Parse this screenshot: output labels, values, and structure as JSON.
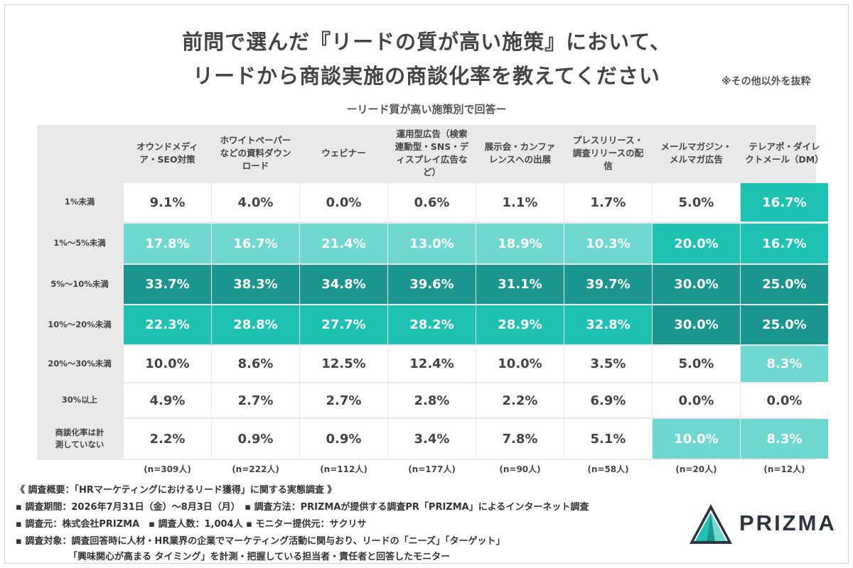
{
  "title_line1": "前問で選んだ『リードの質が高い施策』において、",
  "title_line2": "リードから商談実施の商談化率を教えてください",
  "note": "※その他以外を抜粋",
  "subtitle": "ーリード質が高い施策別で回答ー",
  "chart_data": {
    "type": "table",
    "columns": [
      "オウンドメディア・SEO対策",
      "ホワイトペーパーなどの資料ダウンロード",
      "ウェビナー",
      "運用型広告（検索連動型・SNS・ディスプレイ広告など）",
      "展示会・カンファレンスへの出展",
      "プレスリリース・調査リリースの配信",
      "メールマガジン・メルマガ広告",
      "テレアポ・ダイレクトメール（DM）"
    ],
    "rows": [
      {
        "label": "1%未満",
        "values": [
          "9.1%",
          "4.0%",
          "0.0%",
          "0.6%",
          "1.1%",
          "1.7%",
          "5.0%",
          "16.7%"
        ]
      },
      {
        "label": "1%〜5%未満",
        "values": [
          "17.8%",
          "16.7%",
          "21.4%",
          "13.0%",
          "18.9%",
          "10.3%",
          "20.0%",
          "16.7%"
        ]
      },
      {
        "label": "5%〜10%未満",
        "values": [
          "33.7%",
          "38.3%",
          "34.8%",
          "39.6%",
          "31.1%",
          "39.7%",
          "30.0%",
          "25.0%"
        ]
      },
      {
        "label": "10%〜20%未満",
        "values": [
          "22.3%",
          "28.8%",
          "27.7%",
          "28.2%",
          "28.9%",
          "32.8%",
          "30.0%",
          "25.0%"
        ]
      },
      {
        "label": "20%〜30%未満",
        "values": [
          "10.0%",
          "8.6%",
          "12.5%",
          "12.4%",
          "10.0%",
          "3.5%",
          "5.0%",
          "8.3%"
        ]
      },
      {
        "label": "30%以上",
        "values": [
          "4.9%",
          "2.7%",
          "2.7%",
          "2.8%",
          "2.2%",
          "6.9%",
          "0.0%",
          "0.0%"
        ]
      },
      {
        "label": "商談化率は計測していない",
        "values": [
          "2.2%",
          "0.9%",
          "0.9%",
          "3.4%",
          "7.8%",
          "5.1%",
          "10.0%",
          "8.3%"
        ]
      }
    ],
    "counts": [
      "(n=309人)",
      "(n=222人)",
      "(n=112人)",
      "(n=177人)",
      "(n=90人)",
      "(n=58人)",
      "(n=20人)",
      "(n=12人)"
    ],
    "colors": {
      "light": "#6fd8d0",
      "mid": "#1ec2b3",
      "dark": "#1b968e",
      "plain": "#ffffff"
    }
  },
  "footer": {
    "line1": "《 調査概要：「HRマーケティングにおけるリード獲得」に関する実態調査 》",
    "line2": "▪ 調査期間：2026年7月31日（金）〜8月3日（月）　▪ 調査方法：PRIZMAが提供する調査PR「PRIZMA」によるインターネット調査",
    "line3": "▪ 調査元：株式会社PRIZMA　▪ 調査人数：1,004人 ▪ モニター提供元：サクリサ",
    "line4": "▪ 調査対象：調査回答時に人材・HR業界の企業でマーケティング活動に関与おり、リードの「ニーズ」「ターゲット」",
    "line5": "「興味関心が高まる タイミング」を計測・把握している担当者・責任者と回答したモニター"
  },
  "logo_text": "PRIZMA"
}
